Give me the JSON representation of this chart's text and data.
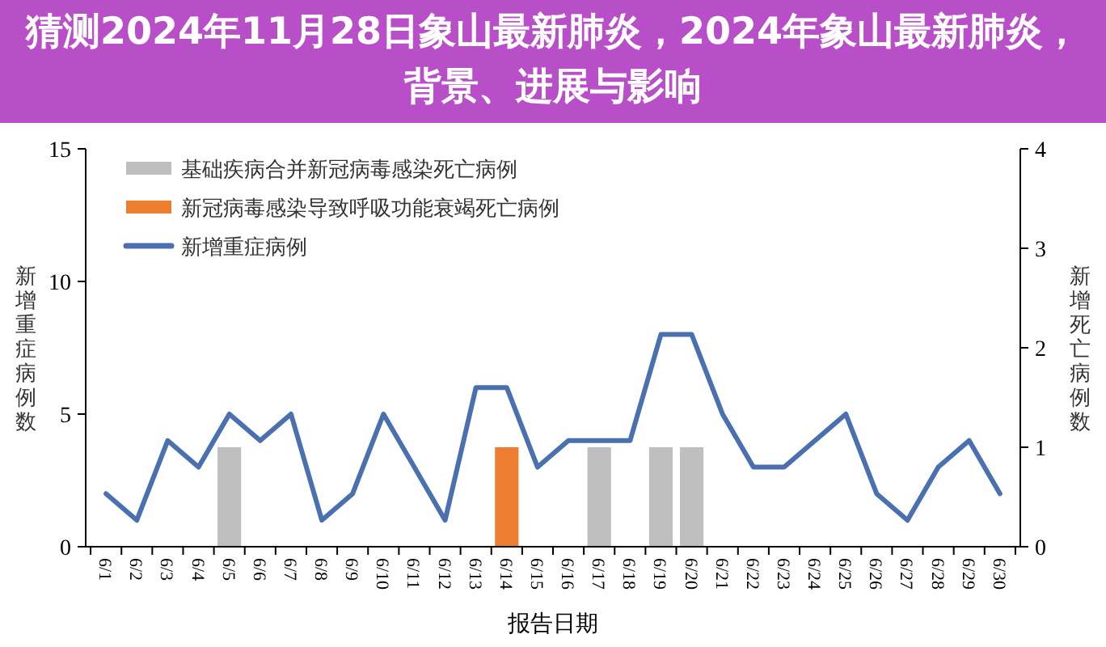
{
  "chart_data": {
    "type": "line",
    "title": "猜测2024年11月28日象山最新肺炎，2024年象山最新肺炎，背景、进展与影响",
    "xlabel": "报告日期",
    "ylabel": "新增重症病例数",
    "y2label": "新增死亡病例数",
    "categories": [
      "6/1",
      "6/2",
      "6/3",
      "6/4",
      "6/5",
      "6/6",
      "6/7",
      "6/8",
      "6/9",
      "6/10",
      "6/11",
      "6/12",
      "6/13",
      "6/14",
      "6/15",
      "6/16",
      "6/17",
      "6/18",
      "6/19",
      "6/20",
      "6/21",
      "6/22",
      "6/23",
      "6/24",
      "6/25",
      "6/26",
      "6/27",
      "6/28",
      "6/29",
      "6/30"
    ],
    "series": [
      {
        "name": "基础疾病合并新冠病毒感染死亡病例",
        "type": "bar",
        "axis": "y2",
        "color": "#bfbfbf",
        "values": [
          null,
          null,
          null,
          null,
          1,
          null,
          null,
          null,
          null,
          null,
          null,
          null,
          null,
          null,
          null,
          null,
          1,
          null,
          1,
          1,
          null,
          null,
          null,
          null,
          null,
          null,
          null,
          null,
          null,
          null
        ]
      },
      {
        "name": "新冠病毒感染导致呼吸功能衰竭死亡病例",
        "type": "bar",
        "axis": "y2",
        "color": "#ed7d31",
        "values": [
          null,
          null,
          null,
          null,
          null,
          null,
          null,
          null,
          null,
          null,
          null,
          null,
          null,
          1,
          null,
          null,
          null,
          null,
          null,
          null,
          null,
          null,
          null,
          null,
          null,
          null,
          null,
          null,
          null,
          null
        ]
      },
      {
        "name": "新增重症病例",
        "color": "#4a70b0",
        "values": [
          2,
          1,
          4,
          3,
          5,
          4,
          5,
          1,
          2,
          5,
          3,
          1,
          6,
          6,
          3,
          4,
          4,
          4,
          8,
          8,
          5,
          3,
          3,
          4,
          5,
          2,
          1,
          3,
          4,
          2
        ]
      }
    ],
    "ylim": [
      0,
      15
    ],
    "yticks": [
      0,
      5,
      10,
      15
    ],
    "y2lim": [
      0,
      4
    ],
    "y2ticks": [
      0,
      1,
      2,
      3,
      4
    ],
    "grid": false,
    "legend": "top left",
    "marker": "none",
    "line_style": "solid"
  }
}
